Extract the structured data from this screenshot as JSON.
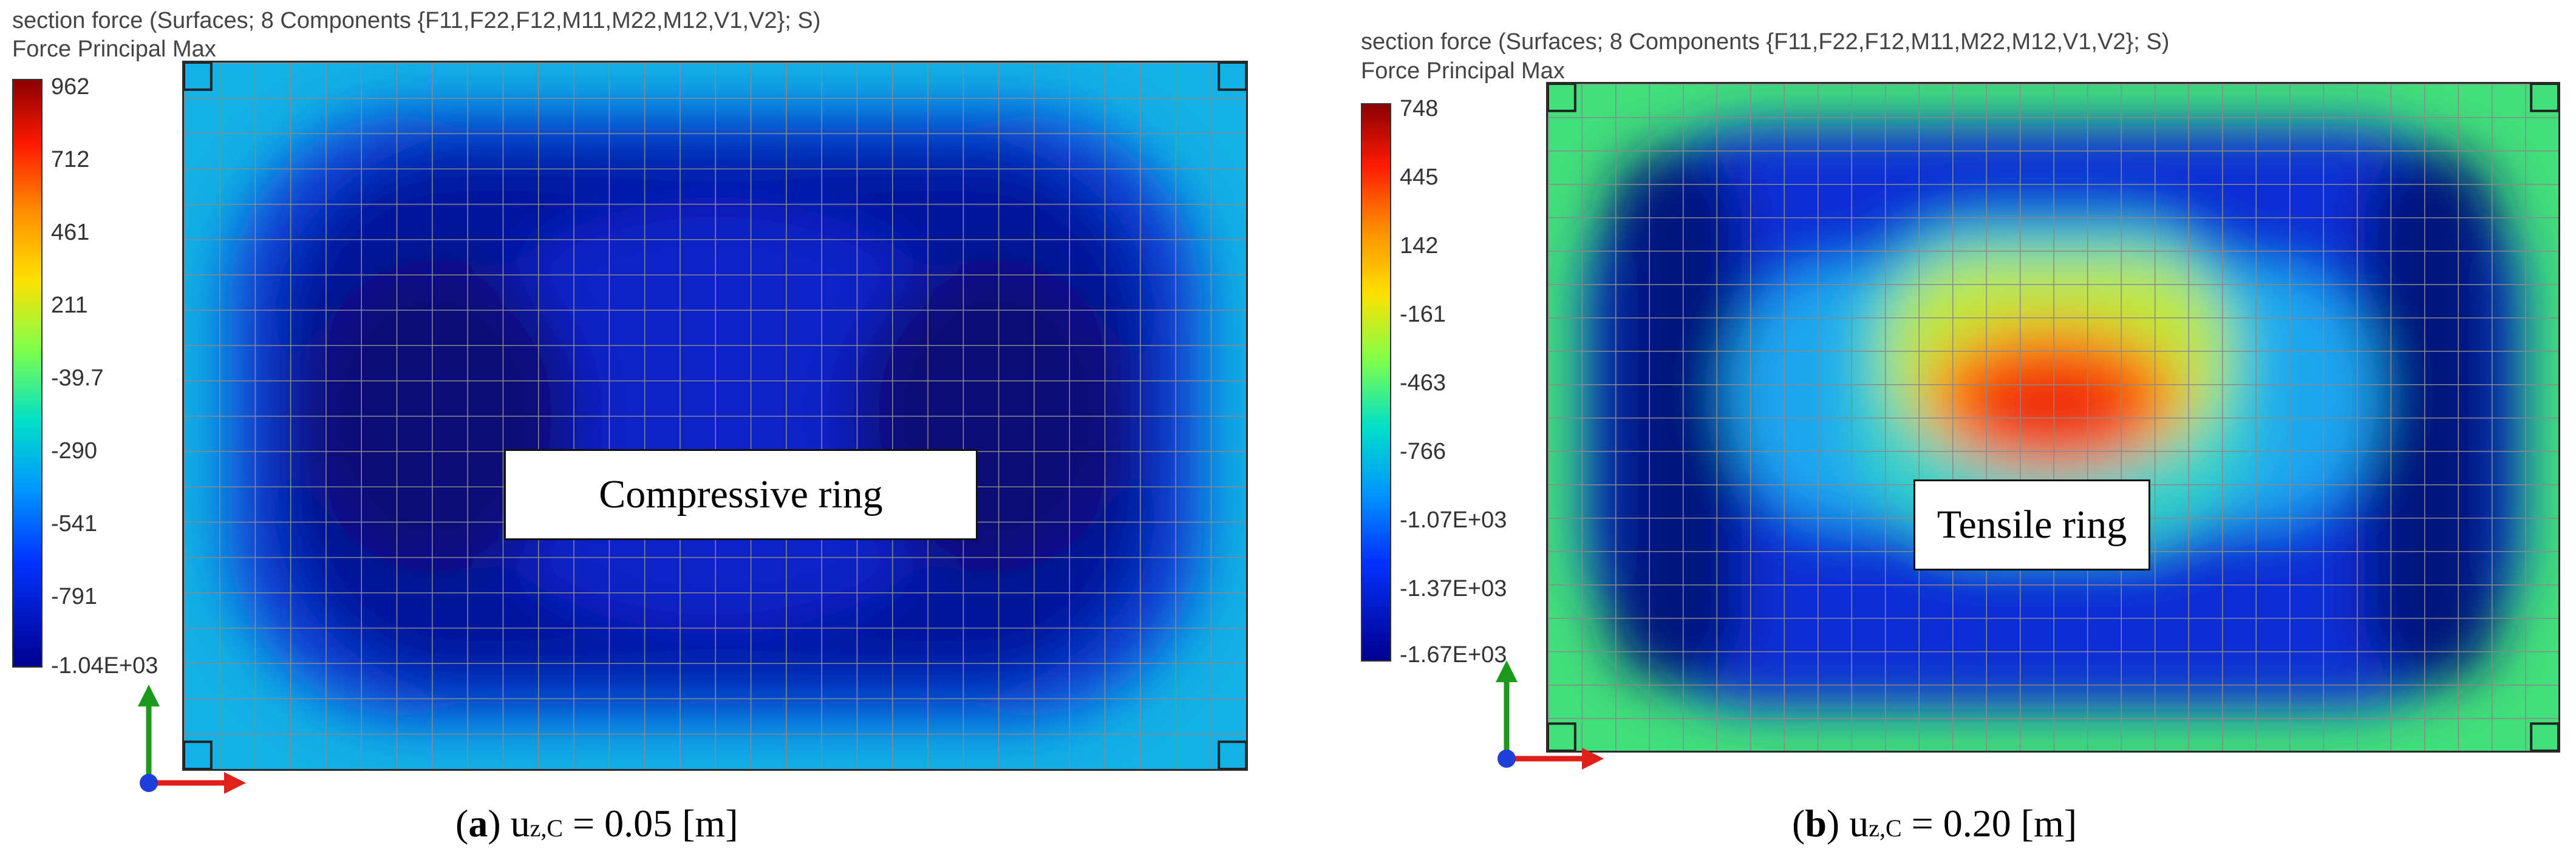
{
  "panels": [
    {
      "header_line1": "section force (Surfaces; 8 Components {F11,F22,F12,M11,M22,M12,V1,V2}; S)",
      "header_line2": "Force Principal Max",
      "colorbar_ticks": [
        "962",
        "712",
        "461",
        "211",
        "-39.7",
        "-290",
        "-541",
        "-791",
        "-1.04E+03"
      ],
      "label": "Compressive ring",
      "caption_letter": "a",
      "caption_var": "u",
      "caption_sub": "z,C",
      "caption_value": " = 0.05 [m]",
      "field_colors": {
        "outer": "#12b1e6",
        "ring": "#00129e",
        "center": "#0a22c8"
      }
    },
    {
      "header_line1": "section force (Surfaces; 8 Components {F11,F22,F12,M11,M22,M12,V1,V2}; S)",
      "header_line2": "Force Principal Max",
      "colorbar_ticks": [
        "748",
        "445",
        "142",
        "-161",
        "-463",
        "-766",
        "-1.07E+03",
        "-1.37E+03",
        "-1.67E+03"
      ],
      "label": "Tensile ring",
      "caption_letter": "b",
      "caption_var": "u",
      "caption_sub": "z,C",
      "caption_value": " = 0.20 [m]",
      "field_colors": {
        "outer": "#41e07a",
        "ring": "#0c2fd6",
        "center": "#ff4a00"
      }
    }
  ]
}
